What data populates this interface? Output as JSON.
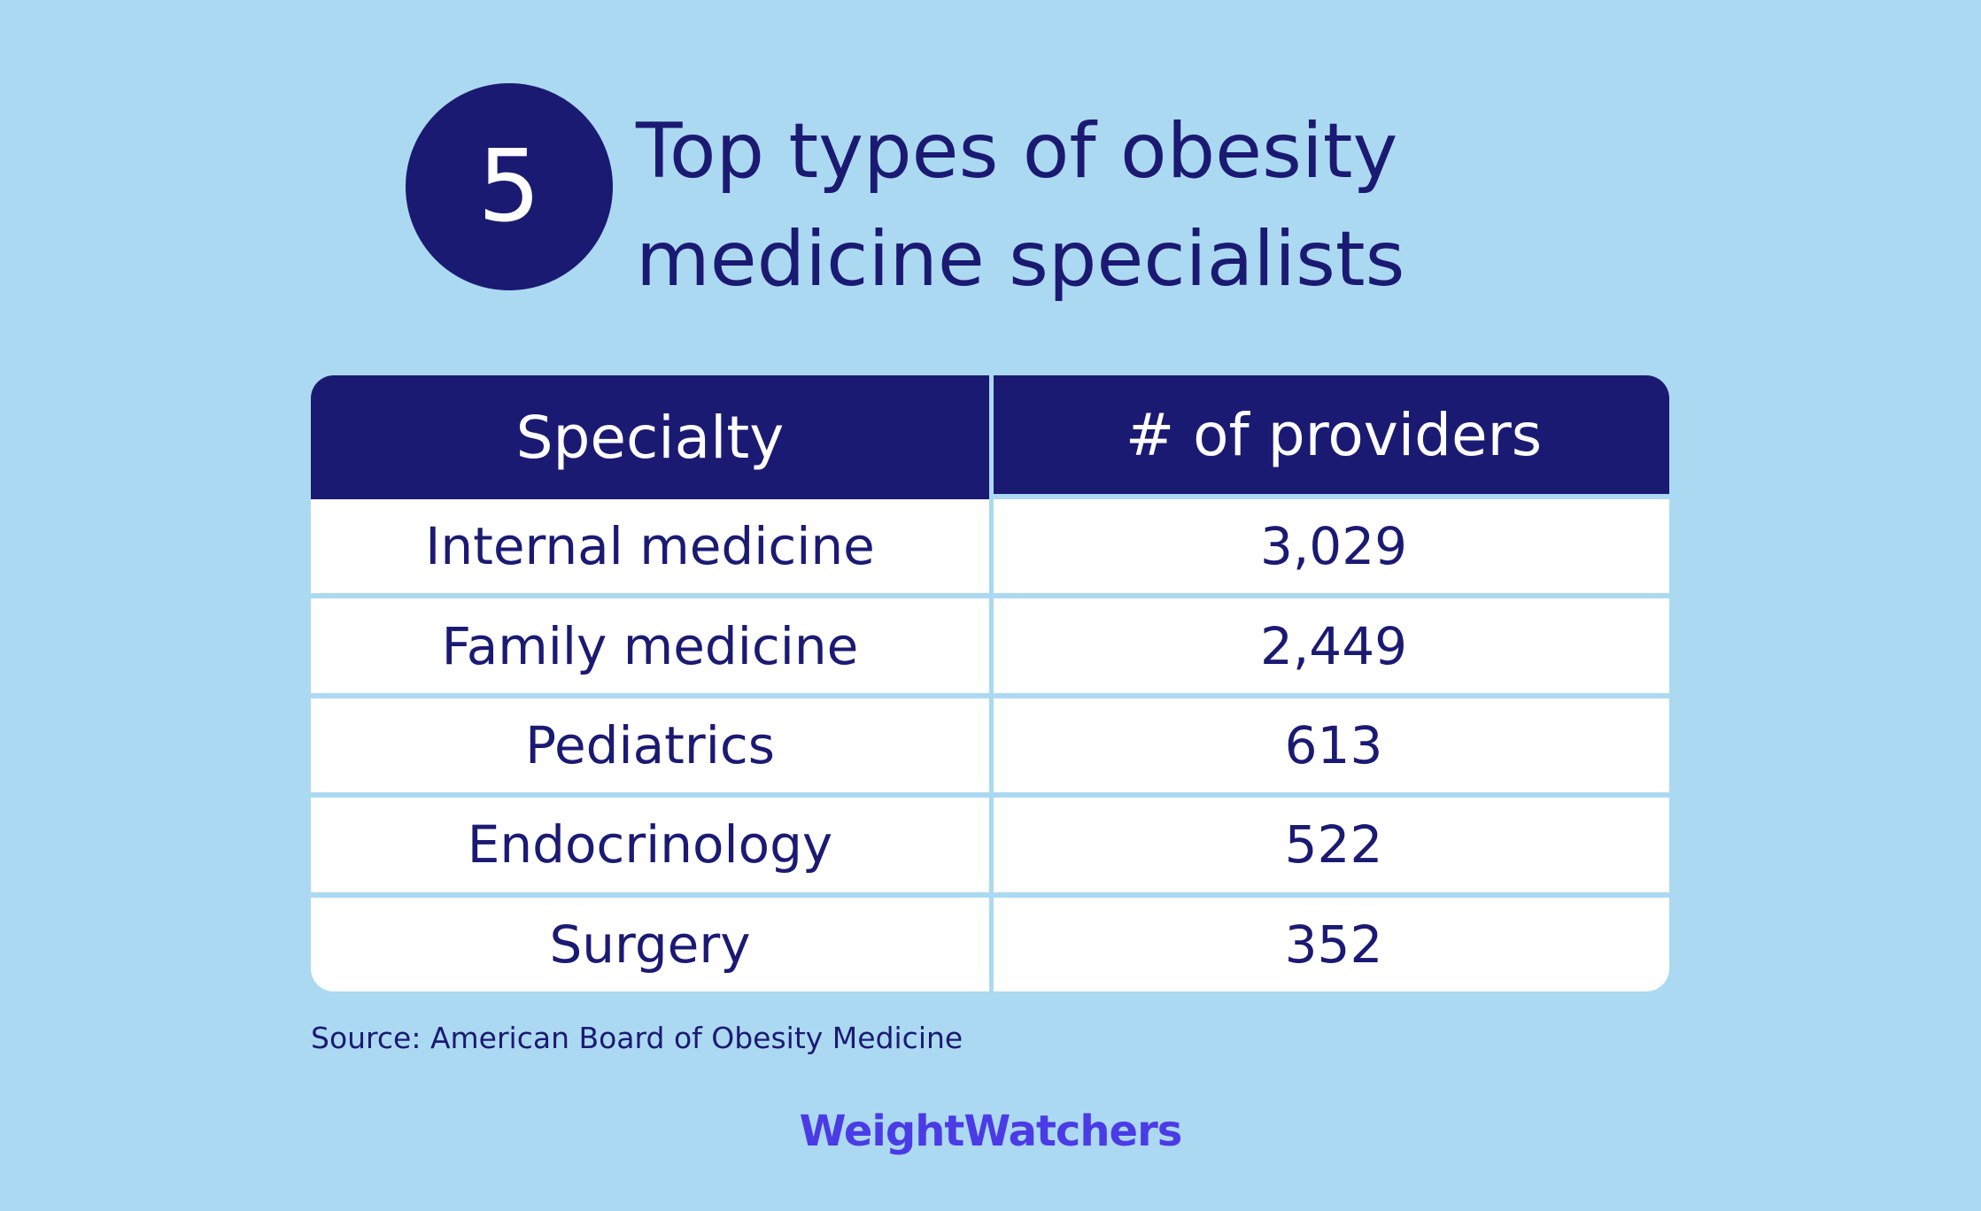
{
  "badge": "5",
  "title": [
    "Top types of obesity",
    "medicine specialists"
  ],
  "table": {
    "header": [
      "Specialty",
      "# of providers"
    ],
    "rows": [
      [
        "Internal medicine",
        "3,029"
      ],
      [
        "Family medicine",
        "2,449"
      ],
      [
        "Pediatrics",
        "613"
      ],
      [
        "Endocrinology",
        "522"
      ],
      [
        "Surgery",
        "352"
      ]
    ]
  },
  "source": "Source: American Board of Obesity Medicine",
  "logo": "WeightWatchers"
}
